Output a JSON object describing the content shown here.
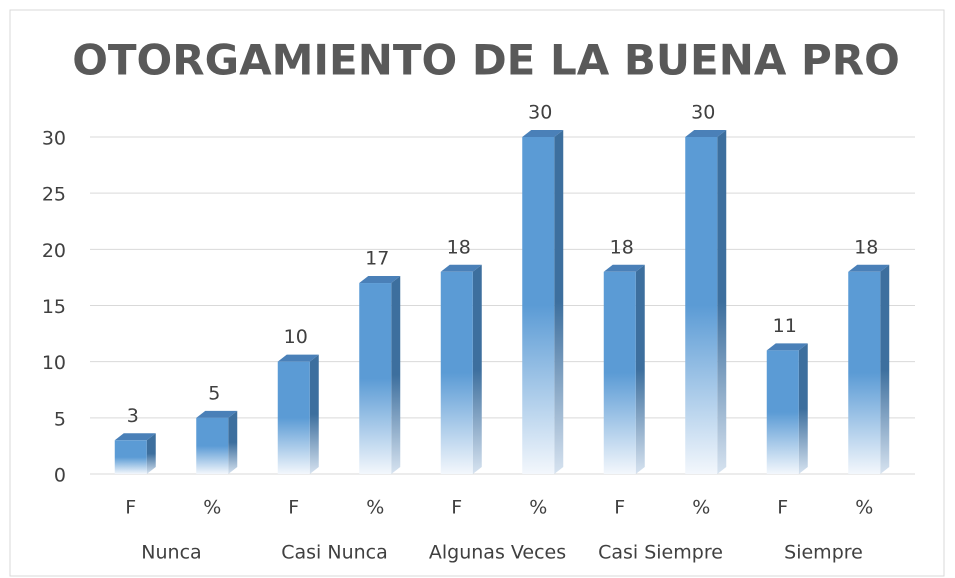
{
  "chart_data": {
    "type": "bar3d",
    "title": "OTORGAMIENTO DE LA BUENA PRO",
    "categories": [
      "F",
      "%",
      "F",
      "%",
      "F",
      "%",
      "F",
      "%",
      "F",
      "%"
    ],
    "groups": [
      "Nunca",
      "Casi Nunca",
      "Algunas Veces",
      "Casi Siempre",
      "Siempre"
    ],
    "values": [
      3,
      5,
      10,
      17,
      18,
      30,
      18,
      30,
      11,
      18
    ],
    "color": "#5b9bd5",
    "ylim": [
      0,
      30
    ],
    "yticks": [
      0,
      5,
      10,
      15,
      20,
      25,
      30
    ],
    "grid": true
  }
}
